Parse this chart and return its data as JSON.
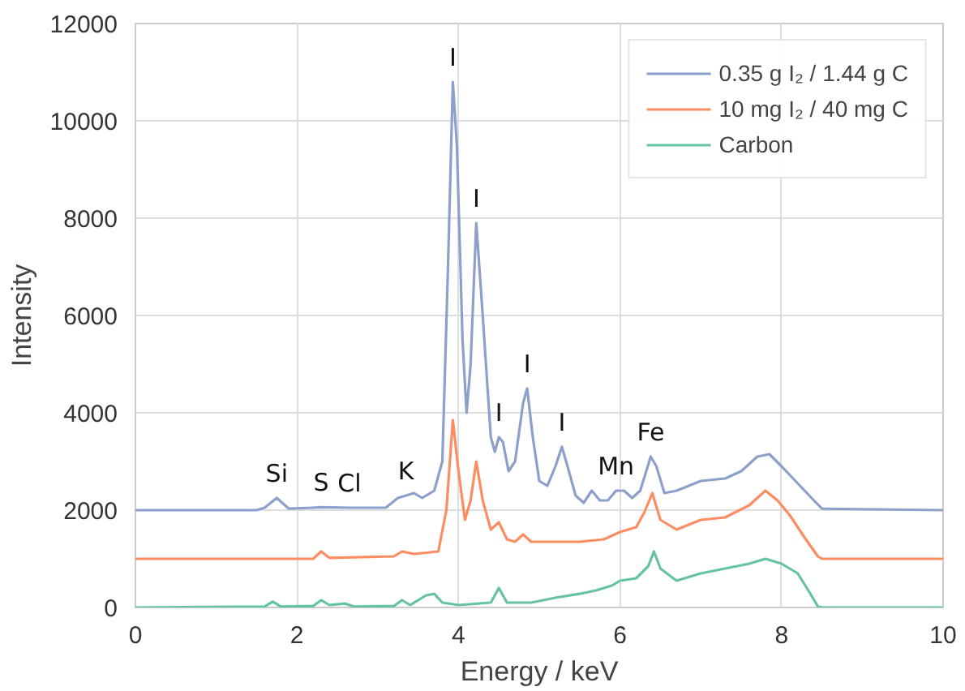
{
  "chart_data": {
    "type": "line",
    "xlabel": "Energy / keV",
    "ylabel": "Intensity",
    "xlim": [
      0,
      10
    ],
    "ylim": [
      0,
      12000
    ],
    "xticks": [
      0,
      2,
      4,
      6,
      8,
      10
    ],
    "yticks": [
      0,
      2000,
      4000,
      6000,
      8000,
      10000,
      12000
    ],
    "grid": true,
    "legend": "top right",
    "line_style": "solid",
    "series": [
      {
        "name": "0.35 g I₂ / 1.44 g C",
        "color": "#8da0cb",
        "x": [
          0,
          1.5,
          1.6,
          1.75,
          1.9,
          2.2,
          2.3,
          2.65,
          3.1,
          3.25,
          3.35,
          3.45,
          3.55,
          3.7,
          3.8,
          3.87,
          3.93,
          3.98,
          4.05,
          4.1,
          4.15,
          4.22,
          4.3,
          4.4,
          4.45,
          4.5,
          4.55,
          4.62,
          4.7,
          4.8,
          4.85,
          4.92,
          5.0,
          5.1,
          5.2,
          5.28,
          5.35,
          5.45,
          5.55,
          5.65,
          5.75,
          5.85,
          5.95,
          6.05,
          6.15,
          6.25,
          6.38,
          6.45,
          6.55,
          6.7,
          7.0,
          7.3,
          7.5,
          7.7,
          7.85,
          8.0,
          8.2,
          8.4,
          8.5,
          10
        ],
        "values": [
          2000,
          2000,
          2050,
          2250,
          2030,
          2050,
          2060,
          2050,
          2050,
          2250,
          2300,
          2350,
          2250,
          2400,
          3000,
          7000,
          10800,
          9500,
          5500,
          4000,
          5000,
          7900,
          6000,
          3500,
          3200,
          3500,
          3400,
          2800,
          3000,
          4200,
          4500,
          3500,
          2600,
          2500,
          2900,
          3300,
          2900,
          2300,
          2150,
          2400,
          2200,
          2200,
          2400,
          2400,
          2250,
          2400,
          3100,
          2900,
          2350,
          2400,
          2600,
          2650,
          2800,
          3100,
          3150,
          2900,
          2550,
          2200,
          2030,
          2000
        ]
      },
      {
        "name": "10 mg I₂ / 40 mg C",
        "color": "#fc8d62",
        "x": [
          0,
          2.2,
          2.3,
          2.4,
          3.2,
          3.3,
          3.45,
          3.75,
          3.85,
          3.93,
          4.0,
          4.08,
          4.15,
          4.22,
          4.3,
          4.4,
          4.5,
          4.6,
          4.7,
          4.8,
          4.9,
          5.5,
          5.8,
          6.0,
          6.2,
          6.3,
          6.4,
          6.5,
          6.7,
          7.0,
          7.3,
          7.6,
          7.8,
          7.95,
          8.1,
          8.3,
          8.45,
          8.5,
          10
        ],
        "values": [
          1000,
          1000,
          1150,
          1020,
          1050,
          1150,
          1100,
          1150,
          2000,
          3850,
          2800,
          1800,
          2200,
          3000,
          2200,
          1600,
          1750,
          1400,
          1350,
          1500,
          1350,
          1350,
          1400,
          1550,
          1650,
          1950,
          2350,
          1800,
          1600,
          1800,
          1850,
          2100,
          2400,
          2200,
          1900,
          1400,
          1050,
          1000,
          1000
        ]
      },
      {
        "name": "Carbon",
        "color": "#66c2a5",
        "x": [
          0,
          1.6,
          1.7,
          1.8,
          2.2,
          2.3,
          2.4,
          2.6,
          2.7,
          3.2,
          3.3,
          3.4,
          3.6,
          3.7,
          3.8,
          4.0,
          4.4,
          4.5,
          4.6,
          4.9,
          5.2,
          5.5,
          5.7,
          5.9,
          6.0,
          6.2,
          6.35,
          6.42,
          6.5,
          6.7,
          7.0,
          7.3,
          7.6,
          7.8,
          8.0,
          8.2,
          8.35,
          8.45,
          8.5,
          10
        ],
        "values": [
          0,
          20,
          120,
          20,
          30,
          150,
          50,
          80,
          20,
          30,
          150,
          50,
          250,
          280,
          100,
          50,
          100,
          400,
          100,
          100,
          200,
          280,
          350,
          450,
          550,
          600,
          850,
          1150,
          800,
          550,
          700,
          800,
          900,
          1000,
          900,
          700,
          300,
          20,
          0,
          0
        ]
      }
    ],
    "annotations": [
      {
        "text": "I",
        "x": 3.93,
        "y": 10800
      },
      {
        "text": "I",
        "x": 4.22,
        "y": 7900
      },
      {
        "text": "I",
        "x": 4.5,
        "y": 3500
      },
      {
        "text": "I",
        "x": 4.85,
        "y": 4500
      },
      {
        "text": "I",
        "x": 5.28,
        "y": 3300
      },
      {
        "text": "Si",
        "x": 1.75,
        "y": 2250
      },
      {
        "text": "S",
        "x": 2.3,
        "y": 2060
      },
      {
        "text": "Cl",
        "x": 2.65,
        "y": 2050
      },
      {
        "text": "K",
        "x": 3.35,
        "y": 2300
      },
      {
        "text": "Mn",
        "x": 5.95,
        "y": 2400
      },
      {
        "text": "Fe",
        "x": 6.38,
        "y": 3100
      }
    ]
  }
}
